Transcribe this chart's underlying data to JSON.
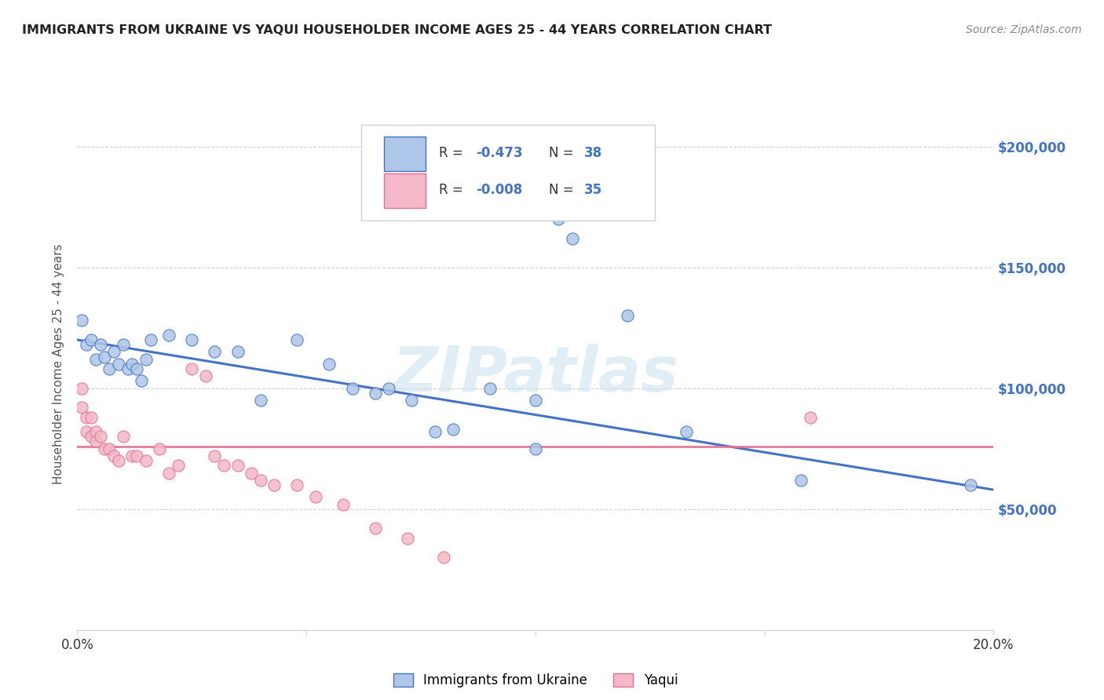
{
  "title": "IMMIGRANTS FROM UKRAINE VS YAQUI HOUSEHOLDER INCOME AGES 25 - 44 YEARS CORRELATION CHART",
  "source": "Source: ZipAtlas.com",
  "ylabel": "Householder Income Ages 25 - 44 years",
  "xlim": [
    0.0,
    0.2
  ],
  "ylim": [
    0,
    220000
  ],
  "yticks": [
    0,
    50000,
    100000,
    150000,
    200000
  ],
  "ytick_labels": [
    "",
    "$50,000",
    "$100,000",
    "$150,000",
    "$200,000"
  ],
  "xticks": [
    0.0,
    0.05,
    0.1,
    0.15,
    0.2
  ],
  "xtick_labels": [
    "0.0%",
    "",
    "",
    "",
    "20.0%"
  ],
  "legend_r_ukraine": "-0.473",
  "legend_n_ukraine": "38",
  "legend_r_yaqui": "-0.008",
  "legend_n_yaqui": "35",
  "ukraine_color": "#aec6e8",
  "ukraine_edge_color": "#4472c4",
  "yaqui_color": "#f4b8c8",
  "yaqui_edge_color": "#e07090",
  "watermark": "ZIPatlas",
  "ukraine_scatter_x": [
    0.001,
    0.002,
    0.003,
    0.004,
    0.005,
    0.006,
    0.007,
    0.008,
    0.009,
    0.01,
    0.011,
    0.012,
    0.013,
    0.014,
    0.015,
    0.016,
    0.02,
    0.025,
    0.03,
    0.035,
    0.04,
    0.048,
    0.055,
    0.06,
    0.065,
    0.068,
    0.073,
    0.078,
    0.082,
    0.09,
    0.1,
    0.105,
    0.108,
    0.12,
    0.133,
    0.1,
    0.158,
    0.195
  ],
  "ukraine_scatter_y": [
    128000,
    118000,
    120000,
    112000,
    118000,
    113000,
    108000,
    115000,
    110000,
    118000,
    108000,
    110000,
    108000,
    103000,
    112000,
    120000,
    122000,
    120000,
    115000,
    115000,
    95000,
    120000,
    110000,
    100000,
    98000,
    100000,
    95000,
    82000,
    83000,
    100000,
    95000,
    170000,
    162000,
    130000,
    82000,
    75000,
    62000,
    60000
  ],
  "yaqui_scatter_x": [
    0.001,
    0.001,
    0.002,
    0.002,
    0.003,
    0.003,
    0.004,
    0.004,
    0.005,
    0.006,
    0.007,
    0.008,
    0.009,
    0.01,
    0.012,
    0.013,
    0.015,
    0.018,
    0.02,
    0.022,
    0.025,
    0.028,
    0.03,
    0.032,
    0.035,
    0.038,
    0.04,
    0.043,
    0.048,
    0.052,
    0.058,
    0.065,
    0.072,
    0.08,
    0.16
  ],
  "yaqui_scatter_y": [
    100000,
    92000,
    88000,
    82000,
    88000,
    80000,
    82000,
    78000,
    80000,
    75000,
    75000,
    72000,
    70000,
    80000,
    72000,
    72000,
    70000,
    75000,
    65000,
    68000,
    108000,
    105000,
    72000,
    68000,
    68000,
    65000,
    62000,
    60000,
    60000,
    55000,
    52000,
    42000,
    38000,
    30000,
    88000
  ],
  "ukraine_trend_x": [
    0.0,
    0.2
  ],
  "ukraine_trend_y": [
    120000,
    58000
  ],
  "yaqui_trend_x": [
    0.0,
    0.2
  ],
  "yaqui_trend_y": [
    76000,
    76000
  ],
  "background_color": "#ffffff",
  "grid_color": "#d0d0d0",
  "title_color": "#222222",
  "source_color": "#888888",
  "ylabel_color": "#555555"
}
